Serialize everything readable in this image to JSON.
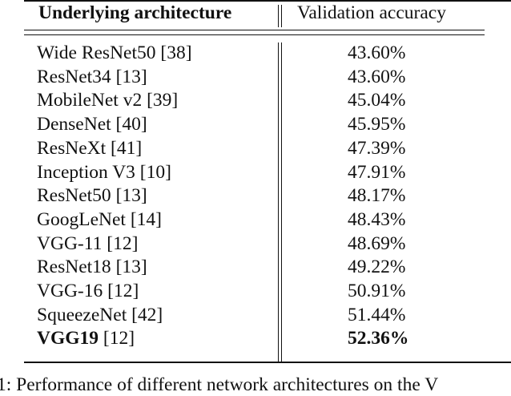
{
  "table": {
    "headers": {
      "architecture": "Underlying architecture",
      "accuracy": "Validation accuracy"
    },
    "rows": [
      {
        "architecture": "Wide ResNet50",
        "ref": "[38]",
        "accuracy": "43.60%",
        "bold": false
      },
      {
        "architecture": "ResNet34",
        "ref": "[13]",
        "accuracy": "43.60%",
        "bold": false
      },
      {
        "architecture": "MobileNet v2",
        "ref": "[39]",
        "accuracy": "45.04%",
        "bold": false
      },
      {
        "architecture": "DenseNet",
        "ref": "[40]",
        "accuracy": "45.95%",
        "bold": false
      },
      {
        "architecture": "ResNeXt",
        "ref": "[41]",
        "accuracy": "47.39%",
        "bold": false
      },
      {
        "architecture": "Inception V3",
        "ref": "[10]",
        "accuracy": "47.91%",
        "bold": false
      },
      {
        "architecture": "ResNet50",
        "ref": "[13]",
        "accuracy": "48.17%",
        "bold": false
      },
      {
        "architecture": "GoogLeNet",
        "ref": "[14]",
        "accuracy": "48.43%",
        "bold": false
      },
      {
        "architecture": "VGG-11",
        "ref": "[12]",
        "accuracy": "48.69%",
        "bold": false
      },
      {
        "architecture": "ResNet18",
        "ref": "[13]",
        "accuracy": "49.22%",
        "bold": false
      },
      {
        "architecture": "VGG-16",
        "ref": "[12]",
        "accuracy": "50.91%",
        "bold": false
      },
      {
        "architecture": "SqueezeNet",
        "ref": "[42]",
        "accuracy": "51.44%",
        "bold": false
      },
      {
        "architecture": "VGG19",
        "ref": "[12]",
        "accuracy": "52.36%",
        "bold": true
      }
    ]
  },
  "caption": "1: Performance of different network architectures on the V"
}
